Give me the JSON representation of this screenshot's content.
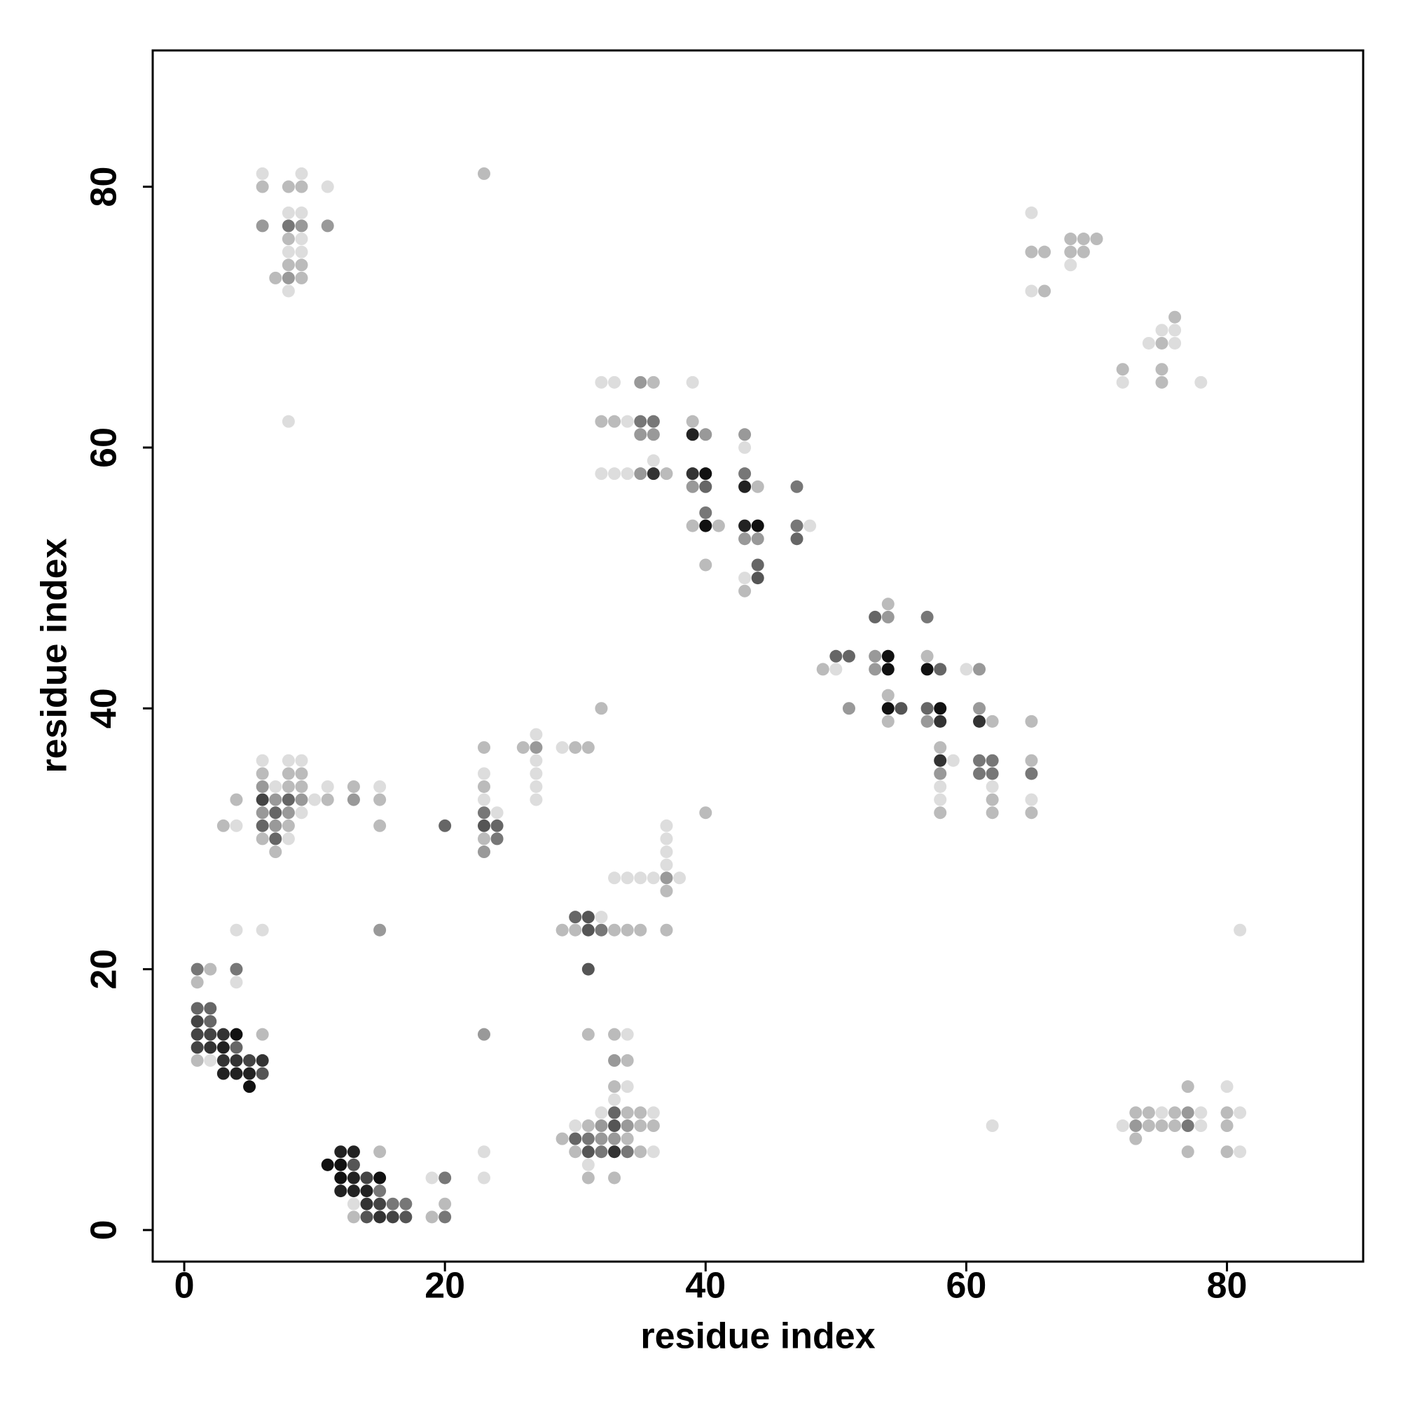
{
  "chart_data": {
    "type": "scatter",
    "xlabel": "residue index",
    "ylabel": "residue index",
    "xlim": [
      -2.42,
      90.45
    ],
    "ylim": [
      -2.42,
      90.45
    ],
    "xticks": [
      0,
      20,
      40,
      60,
      80
    ],
    "yticks": [
      0,
      20,
      40,
      60,
      80
    ],
    "x": [
      1,
      2,
      4,
      1,
      4,
      1,
      2,
      1,
      2,
      1,
      2,
      3,
      4,
      6,
      1,
      2,
      3,
      4,
      1,
      2,
      3,
      4,
      5,
      6,
      3,
      4,
      5,
      6,
      5,
      4,
      6,
      12,
      13,
      15,
      11,
      12,
      13,
      12,
      13,
      14,
      15,
      12,
      13,
      14,
      15,
      13,
      14,
      15,
      16,
      17,
      13,
      14,
      15,
      16,
      17,
      19,
      20,
      20,
      19,
      20,
      23,
      23,
      31,
      33,
      34,
      33,
      34,
      33,
      34,
      33,
      32,
      33,
      34,
      35,
      36,
      30,
      31,
      32,
      33,
      34,
      35,
      36,
      29,
      30,
      31,
      32,
      33,
      34,
      30,
      31,
      32,
      33,
      34,
      35,
      36,
      31,
      31,
      33,
      31,
      30,
      31,
      32,
      29,
      30,
      31,
      32,
      33,
      34,
      35,
      37,
      33,
      34,
      35,
      36,
      37,
      38,
      37,
      37,
      37,
      37,
      37,
      40,
      32,
      6,
      8,
      9,
      6,
      8,
      9,
      6,
      7,
      8,
      9,
      11,
      13,
      15,
      4,
      6,
      7,
      8,
      9,
      10,
      11,
      13,
      15,
      6,
      7,
      8,
      9,
      3,
      4,
      6,
      7,
      8,
      15,
      6,
      7,
      8,
      7,
      15,
      20,
      23,
      23,
      23,
      23,
      23,
      23,
      24,
      23,
      24,
      23,
      24,
      23,
      26,
      27,
      27,
      27,
      27,
      27,
      27,
      29,
      30,
      31,
      6,
      9,
      6,
      8,
      9,
      11,
      8,
      9,
      6,
      8,
      9,
      11,
      8,
      9,
      8,
      9,
      8,
      9,
      7,
      8,
      9,
      8,
      8,
      23,
      32,
      33,
      35,
      36,
      39,
      32,
      33,
      34,
      35,
      36,
      39,
      35,
      36,
      39,
      40,
      43,
      43,
      36,
      32,
      33,
      34,
      35,
      36,
      37,
      39,
      40,
      43,
      39,
      40,
      43,
      44,
      47,
      40,
      39,
      40,
      41,
      43,
      44,
      47,
      48,
      43,
      44,
      47,
      40,
      44,
      43,
      44,
      43,
      54,
      53,
      54,
      57,
      50,
      51,
      53,
      54,
      57,
      49,
      50,
      53,
      54,
      57,
      58,
      60,
      61,
      54,
      51,
      54,
      55,
      57,
      58,
      61,
      54,
      57,
      58,
      61,
      62,
      65,
      58,
      58,
      59,
      61,
      62,
      65,
      58,
      61,
      62,
      65,
      58,
      62,
      58,
      62,
      65,
      58,
      62,
      65,
      65,
      65,
      66,
      68,
      69,
      70,
      68,
      69,
      68,
      65,
      66,
      76,
      75,
      76,
      74,
      75,
      76,
      72,
      75,
      72,
      75,
      78,
      81,
      62,
      77,
      80,
      73,
      74,
      75,
      76,
      77,
      78,
      80,
      81,
      72,
      73,
      74,
      75,
      76,
      77,
      78,
      80,
      73,
      77,
      80,
      81
    ],
    "y": [
      20,
      20,
      20,
      19,
      19,
      17,
      17,
      16,
      16,
      15,
      15,
      15,
      15,
      15,
      14,
      14,
      14,
      14,
      13,
      13,
      13,
      13,
      13,
      13,
      12,
      12,
      12,
      12,
      11,
      23,
      23,
      6,
      6,
      6,
      5,
      5,
      5,
      4,
      4,
      4,
      4,
      3,
      3,
      3,
      3,
      2,
      2,
      2,
      2,
      2,
      1,
      1,
      1,
      1,
      1,
      4,
      4,
      2,
      1,
      1,
      6,
      4,
      15,
      15,
      15,
      13,
      13,
      11,
      11,
      10,
      9,
      9,
      9,
      9,
      9,
      8,
      8,
      8,
      8,
      8,
      8,
      8,
      7,
      7,
      7,
      7,
      7,
      7,
      6,
      6,
      6,
      6,
      6,
      6,
      6,
      5,
      4,
      4,
      20,
      24,
      24,
      24,
      23,
      23,
      23,
      23,
      23,
      23,
      23,
      23,
      27,
      27,
      27,
      27,
      27,
      27,
      26,
      28,
      29,
      30,
      31,
      32,
      40,
      36,
      36,
      36,
      35,
      35,
      35,
      34,
      34,
      34,
      34,
      34,
      34,
      34,
      33,
      33,
      33,
      33,
      33,
      33,
      33,
      33,
      33,
      32,
      32,
      32,
      32,
      31,
      31,
      31,
      31,
      31,
      31,
      30,
      30,
      30,
      29,
      23,
      31,
      15,
      37,
      35,
      34,
      33,
      32,
      32,
      31,
      31,
      30,
      30,
      29,
      37,
      37,
      38,
      36,
      35,
      34,
      33,
      37,
      37,
      37,
      81,
      81,
      80,
      80,
      80,
      80,
      78,
      78,
      77,
      77,
      77,
      77,
      76,
      76,
      75,
      75,
      74,
      74,
      73,
      73,
      73,
      72,
      62,
      81,
      65,
      65,
      65,
      65,
      65,
      62,
      62,
      62,
      62,
      62,
      62,
      61,
      61,
      61,
      61,
      61,
      60,
      59,
      58,
      58,
      58,
      58,
      58,
      58,
      58,
      58,
      58,
      57,
      57,
      57,
      57,
      57,
      55,
      54,
      54,
      54,
      54,
      54,
      54,
      54,
      53,
      53,
      53,
      51,
      51,
      50,
      50,
      49,
      48,
      47,
      47,
      47,
      44,
      44,
      44,
      44,
      44,
      43,
      43,
      43,
      43,
      43,
      43,
      43,
      43,
      41,
      40,
      40,
      40,
      40,
      40,
      40,
      39,
      39,
      39,
      39,
      39,
      39,
      37,
      36,
      36,
      36,
      36,
      36,
      35,
      35,
      35,
      35,
      34,
      34,
      33,
      33,
      33,
      32,
      32,
      32,
      78,
      75,
      75,
      76,
      76,
      76,
      75,
      75,
      74,
      72,
      72,
      70,
      69,
      69,
      68,
      68,
      68,
      66,
      66,
      65,
      65,
      65,
      23,
      8,
      11,
      11,
      9,
      9,
      9,
      9,
      9,
      9,
      9,
      9,
      8,
      8,
      8,
      8,
      8,
      8,
      8,
      8,
      7,
      6,
      6,
      6
    ],
    "colors": [
      "#777",
      "#bbb",
      "#777",
      "#bbb",
      "#ddd",
      "#666",
      "#666",
      "#444",
      "#666",
      "#444",
      "#444",
      "#333",
      "#111",
      "#bbb",
      "#444",
      "#333",
      "#222",
      "#666",
      "#bbb",
      "#ddd",
      "#333",
      "#333",
      "#444",
      "#333",
      "#222",
      "#222",
      "#222",
      "#555",
      "#111",
      "#ddd",
      "#ddd",
      "#222",
      "#222",
      "#bbb",
      "#111",
      "#111",
      "#555",
      "#111",
      "#222",
      "#444",
      "#111",
      "#222",
      "#222",
      "#222",
      "#777",
      "#ddd",
      "#333",
      "#444",
      "#777",
      "#777",
      "#bbb",
      "#555",
      "#333",
      "#444",
      "#555",
      "#ddd",
      "#777",
      "#bbb",
      "#bbb",
      "#777",
      "#ddd",
      "#ddd",
      "#bbb",
      "#bbb",
      "#ddd",
      "#999",
      "#bbb",
      "#bbb",
      "#ddd",
      "#ddd",
      "#ddd",
      "#666",
      "#bbb",
      "#bbb",
      "#ddd",
      "#ddd",
      "#bbb",
      "#999",
      "#555",
      "#999",
      "#bbb",
      "#bbb",
      "#bbb",
      "#666",
      "#777",
      "#999",
      "#999",
      "#bbb",
      "#bbb",
      "#555",
      "#777",
      "#333",
      "#777",
      "#bbb",
      "#ddd",
      "#ddd",
      "#bbb",
      "#bbb",
      "#555",
      "#666",
      "#555",
      "#ddd",
      "#bbb",
      "#bbb",
      "#555",
      "#777",
      "#bbb",
      "#bbb",
      "#bbb",
      "#bbb",
      "#ddd",
      "#ddd",
      "#ddd",
      "#ddd",
      "#999",
      "#ddd",
      "#bbb",
      "#ddd",
      "#ddd",
      "#ddd",
      "#ddd",
      "#bbb",
      "#bbb",
      "#ddd",
      "#ddd",
      "#ddd",
      "#bbb",
      "#bbb",
      "#bbb",
      "#999",
      "#ddd",
      "#bbb",
      "#bbb",
      "#ddd",
      "#bbb",
      "#ddd",
      "#bbb",
      "#444",
      "#999",
      "#666",
      "#999",
      "#ddd",
      "#bbb",
      "#999",
      "#bbb",
      "#999",
      "#666",
      "#999",
      "#ddd",
      "#bbb",
      "#ddd",
      "#666",
      "#999",
      "#bbb",
      "#bbb",
      "#bbb",
      "#666",
      "#ddd",
      "#bbb",
      "#999",
      "#666",
      "#999",
      "#bbb",
      "#ddd",
      "#bbb",
      "#ddd",
      "#777",
      "#ddd",
      "#555",
      "#666",
      "#bbb",
      "#777",
      "#999",
      "#bbb",
      "#999",
      "#ddd",
      "#ddd",
      "#ddd",
      "#ddd",
      "#ddd",
      "#ddd",
      "#bbb",
      "#bbb",
      "#ddd",
      "#ddd",
      "#bbb",
      "#bbb",
      "#bbb",
      "#ddd",
      "#ddd",
      "#ddd",
      "#999",
      "#777",
      "#999",
      "#999",
      "#bbb",
      "#ddd",
      "#ddd",
      "#ddd",
      "#bbb",
      "#bbb",
      "#bbb",
      "#999",
      "#bbb",
      "#ddd",
      "#ddd",
      "#bbb",
      "#ddd",
      "#ddd",
      "#999",
      "#bbb",
      "#ddd",
      "#bbb",
      "#bbb",
      "#ddd",
      "#777",
      "#777",
      "#bbb",
      "#999",
      "#999",
      "#222",
      "#999",
      "#999",
      "#ddd",
      "#ddd",
      "#ddd",
      "#ddd",
      "#ddd",
      "#999",
      "#333",
      "#bbb",
      "#333",
      "#111",
      "#777",
      "#999",
      "#666",
      "#222",
      "#bbb",
      "#777",
      "#777",
      "#bbb",
      "#111",
      "#bbb",
      "#222",
      "#111",
      "#777",
      "#ddd",
      "#999",
      "#999",
      "#666",
      "#bbb",
      "#666",
      "#ddd",
      "#555",
      "#bbb",
      "#bbb",
      "#666",
      "#999",
      "#777",
      "#666",
      "#666",
      "#999",
      "#111",
      "#bbb",
      "#bbb",
      "#ddd",
      "#999",
      "#111",
      "#111",
      "#666",
      "#ddd",
      "#999",
      "#bbb",
      "#999",
      "#111",
      "#555",
      "#666",
      "#111",
      "#999",
      "#bbb",
      "#999",
      "#333",
      "#333",
      "#bbb",
      "#bbb",
      "#bbb",
      "#333",
      "#ddd",
      "#777",
      "#777",
      "#bbb",
      "#999",
      "#777",
      "#777",
      "#777",
      "#ddd",
      "#ddd",
      "#ddd",
      "#bbb",
      "#ddd",
      "#bbb",
      "#bbb",
      "#bbb",
      "#ddd",
      "#bbb",
      "#bbb",
      "#bbb",
      "#bbb",
      "#bbb",
      "#bbb",
      "#bbb",
      "#ddd",
      "#ddd",
      "#bbb",
      "#bbb",
      "#ddd",
      "#ddd",
      "#ddd",
      "#bbb",
      "#ddd",
      "#bbb",
      "#bbb",
      "#ddd",
      "#bbb",
      "#ddd",
      "#ddd",
      "#ddd",
      "#bbb",
      "#ddd",
      "#bbb",
      "#bbb",
      "#ddd",
      "#bbb",
      "#999",
      "#ddd",
      "#bbb",
      "#ddd",
      "#ddd",
      "#999",
      "#bbb",
      "#bbb",
      "#bbb",
      "#777",
      "#ddd",
      "#bbb",
      "#bbb",
      "#bbb",
      "#bbb",
      "#ddd"
    ]
  }
}
